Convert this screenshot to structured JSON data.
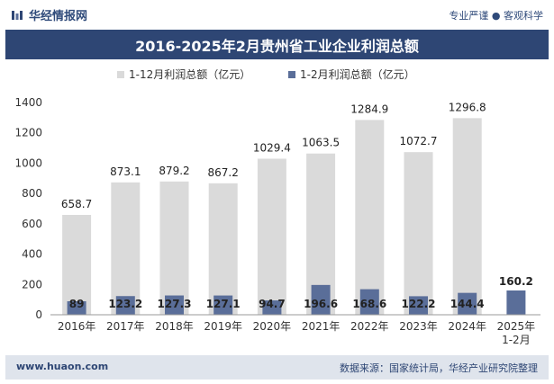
{
  "header": {
    "brand": "华经情报网",
    "slogan": "专业严谨 ● 客观科学"
  },
  "footer": {
    "url": "www.huaon.com",
    "source": "数据来源：国家统计局，华经产业研究院整理"
  },
  "colors": {
    "accent": "#2e4674",
    "bar_total": "#dadada",
    "bar_jan_feb": "#5a6e99"
  },
  "chart_data": {
    "type": "bar",
    "title": "2016-2025年2月贵州省工业企业利润总额",
    "categories": [
      "2016年",
      "2017年",
      "2018年",
      "2019年",
      "2020年",
      "2021年",
      "2022年",
      "2023年",
      "2024年",
      "2025年\n1-2月"
    ],
    "series": [
      {
        "name": "1-12月利润总额（亿元）",
        "values": [
          658.7,
          873.1,
          879.2,
          867.2,
          1029.4,
          1063.5,
          1284.9,
          1072.7,
          1296.8,
          null
        ],
        "labels": [
          "658.7",
          "873.1",
          "879.2",
          "867.2",
          "1029.4",
          "1063.5",
          "1284.9",
          "1072.7",
          "1296.8",
          ""
        ]
      },
      {
        "name": "1-2月利润总额（亿元）",
        "values": [
          89,
          123.2,
          127.3,
          127.1,
          94.7,
          196.6,
          168.6,
          122.2,
          144.4,
          160.2
        ],
        "labels": [
          "89",
          "123.2",
          "127.3",
          "127.1",
          "94.7",
          "196.6",
          "168.6",
          "122.2",
          "144.4",
          "160.2"
        ]
      }
    ],
    "yticks": [
      0,
      200,
      400,
      600,
      800,
      1000,
      1200,
      1400
    ],
    "ylim": [
      0,
      1400
    ],
    "legend": "top",
    "grid": false
  }
}
